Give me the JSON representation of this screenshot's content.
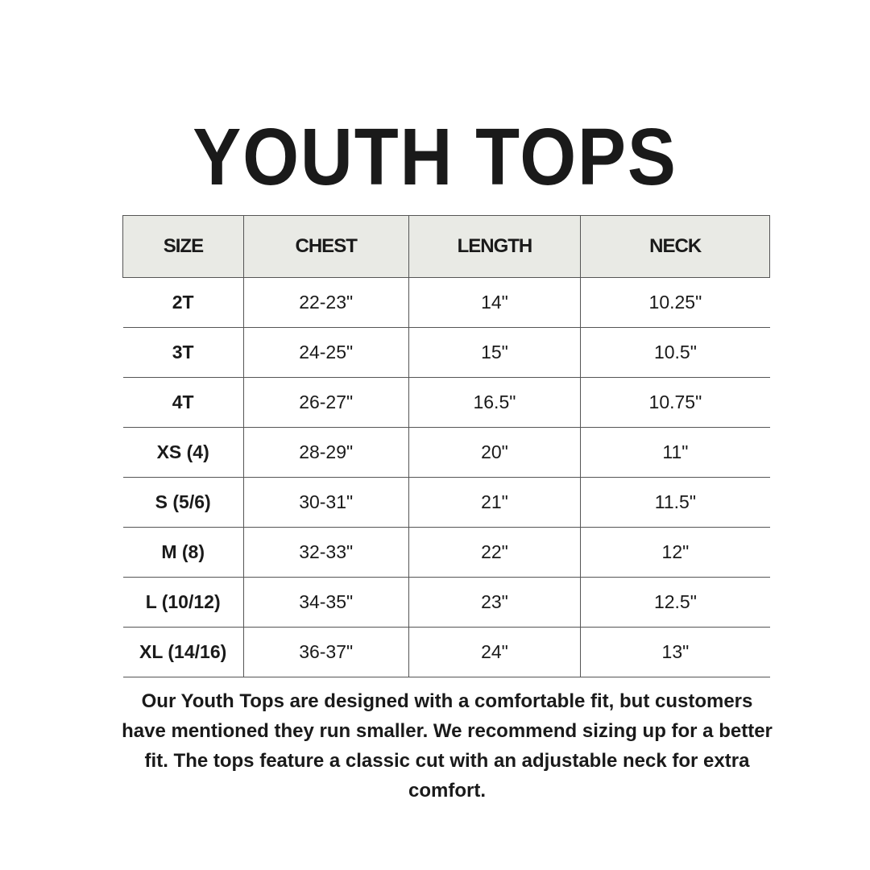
{
  "title": "YOUTH TOPS",
  "table": {
    "headers": [
      "SIZE",
      "CHEST",
      "LENGTH",
      "NECK"
    ],
    "rows": [
      [
        "2T",
        "22-23\"",
        "14\"",
        "10.25\""
      ],
      [
        "3T",
        "24-25\"",
        "15\"",
        "10.5\""
      ],
      [
        "4T",
        "26-27\"",
        "16.5\"",
        "10.75\""
      ],
      [
        "XS (4)",
        "28-29\"",
        "20\"",
        "11\""
      ],
      [
        "S (5/6)",
        "30-31\"",
        "21\"",
        "11.5\""
      ],
      [
        "M (8)",
        "32-33\"",
        "22\"",
        "12\""
      ],
      [
        "L (10/12)",
        "34-35\"",
        "23\"",
        "12.5\""
      ],
      [
        "XL (14/16)",
        "36-37\"",
        "24\"",
        "13\""
      ]
    ]
  },
  "note": "Our Youth Tops are designed with a comfortable fit, but customers have mentioned they run smaller. We recommend sizing up for a better fit. The tops feature a classic cut with an adjustable neck for extra comfort.",
  "colors": {
    "header_bg": "#e9eae5",
    "text": "#1a1a1a"
  }
}
